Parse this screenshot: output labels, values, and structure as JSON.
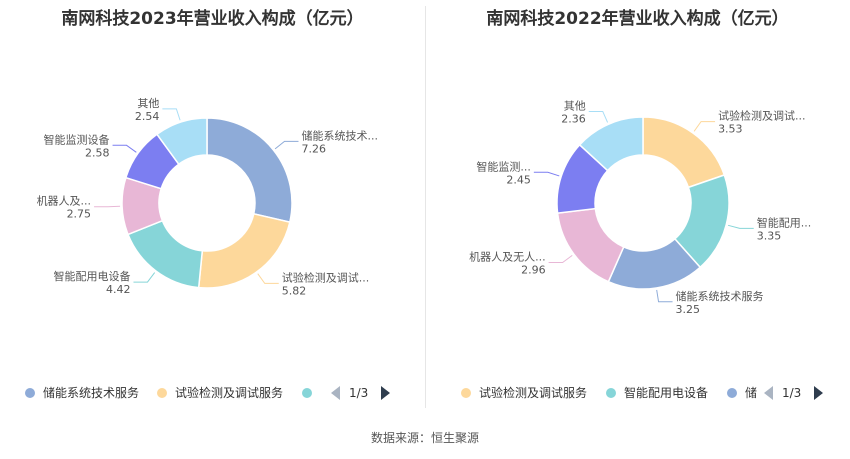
{
  "source": "数据来源：恒生聚源",
  "charts": [
    {
      "title": "南网科技2023年营业收入构成（亿元）",
      "pager": "1/3",
      "legend": [
        {
          "label": "储能系统技术服务",
          "color": "#8eabd8"
        },
        {
          "label": "试验检测及调试服务",
          "color": "#fdd89b"
        },
        {
          "label": "",
          "color": "#86d5d8"
        }
      ]
    },
    {
      "title": "南网科技2022年营业收入构成（亿元）",
      "pager": "1/3",
      "legend": [
        {
          "label": "试验检测及调试服务",
          "color": "#fdd89b"
        },
        {
          "label": "智能配用电设备",
          "color": "#86d5d8"
        },
        {
          "label": "储",
          "color": "#8eabd8"
        }
      ]
    }
  ],
  "chart_data": [
    {
      "type": "pie",
      "title": "南网科技2023年营业收入构成（亿元）",
      "slices": [
        {
          "name": "储能系统技术...",
          "value": 7.26,
          "color": "#8eabd8"
        },
        {
          "name": "试验检测及调试...",
          "value": 5.82,
          "color": "#fdd89b"
        },
        {
          "name": "智能配用电设备",
          "value": 4.42,
          "color": "#86d5d8"
        },
        {
          "name": "机器人及...",
          "value": 2.75,
          "color": "#e8b7d6"
        },
        {
          "name": "智能监测设备",
          "value": 2.58,
          "color": "#7c7ef1"
        },
        {
          "name": "其他",
          "value": 2.54,
          "color": "#a8def6"
        }
      ]
    },
    {
      "type": "pie",
      "title": "南网科技2022年营业收入构成（亿元）",
      "slices": [
        {
          "name": "试验检测及调试...",
          "value": 3.53,
          "color": "#fdd89b"
        },
        {
          "name": "智能配用...",
          "value": 3.35,
          "color": "#86d5d8"
        },
        {
          "name": "储能系统技术服务",
          "value": 3.25,
          "color": "#8eabd8"
        },
        {
          "name": "机器人及无人...",
          "value": 2.96,
          "color": "#e8b7d6"
        },
        {
          "name": "智能监测...",
          "value": 2.45,
          "color": "#7c7ef1"
        },
        {
          "name": "其他",
          "value": 2.36,
          "color": "#a8def6"
        }
      ]
    }
  ]
}
